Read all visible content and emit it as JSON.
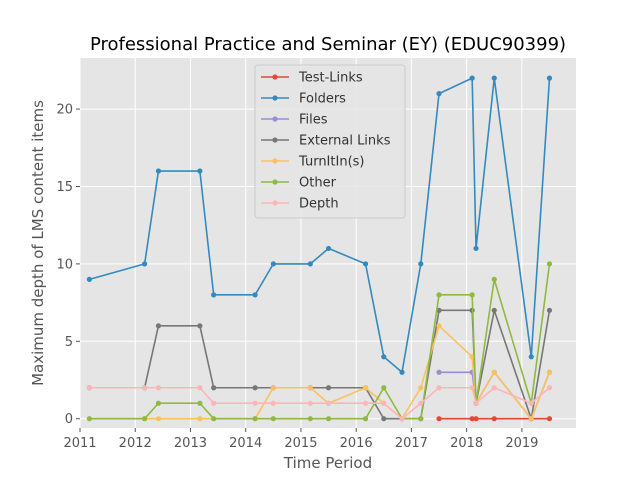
{
  "chart_data": {
    "type": "line",
    "title": "Professional Practice and Seminar (EY) (EDUC90399)",
    "xlabel": "Time Period",
    "ylabel": "Maximum depth of LMS content items",
    "xlim": [
      2011.0,
      2019.98
    ],
    "ylim": [
      -0.6,
      23.3
    ],
    "xticks": [
      2011,
      2012,
      2013,
      2014,
      2015,
      2016,
      2017,
      2018,
      2019
    ],
    "yticks": [
      0,
      5,
      10,
      15,
      20
    ],
    "grid": true,
    "legend_position": "top-center",
    "x": [
      2011.17,
      2012.17,
      2012.42,
      2013.17,
      2013.42,
      2014.17,
      2014.5,
      2015.17,
      2015.5,
      2016.17,
      2016.5,
      2016.83,
      2017.17,
      2017.5,
      2018.1,
      2018.17,
      2018.5,
      2019.17,
      2019.5
    ],
    "series": [
      {
        "name": "Test-Links",
        "color": "#E24A33",
        "values": [
          null,
          null,
          null,
          null,
          null,
          null,
          null,
          null,
          null,
          null,
          null,
          null,
          null,
          0,
          0,
          0,
          0,
          0,
          0
        ]
      },
      {
        "name": "Folders",
        "color": "#348ABD",
        "values": [
          9,
          10,
          16,
          16,
          8,
          8,
          10,
          10,
          11,
          10,
          4,
          3,
          10,
          21,
          22,
          11,
          22,
          4,
          22
        ]
      },
      {
        "name": "Files",
        "color": "#988ED5",
        "values": [
          null,
          null,
          null,
          null,
          null,
          null,
          null,
          null,
          null,
          null,
          null,
          null,
          null,
          3,
          3,
          1,
          3,
          0,
          3
        ]
      },
      {
        "name": "External Links",
        "color": "#777777",
        "values": [
          2,
          2,
          6,
          6,
          2,
          2,
          2,
          2,
          2,
          2,
          0,
          0,
          0,
          7,
          7,
          1,
          7,
          0,
          7
        ]
      },
      {
        "name": "TurnItIn(s)",
        "color": "#FBC15E",
        "values": [
          0,
          0,
          0,
          0,
          0,
          0,
          2,
          2,
          1,
          2,
          1,
          0,
          2,
          6,
          4,
          1,
          3,
          0,
          3
        ]
      },
      {
        "name": "Other",
        "color": "#8EBA42",
        "values": [
          0,
          0,
          1,
          1,
          0,
          0,
          0,
          0,
          0,
          0,
          2,
          0,
          0,
          8,
          8,
          1,
          9,
          1,
          10
        ]
      },
      {
        "name": "Depth",
        "color": "#FFB5B8",
        "values": [
          2,
          2,
          2,
          2,
          1,
          1,
          1,
          1,
          1,
          1,
          1,
          0,
          1,
          2,
          2,
          1,
          2,
          1,
          2
        ]
      }
    ]
  }
}
